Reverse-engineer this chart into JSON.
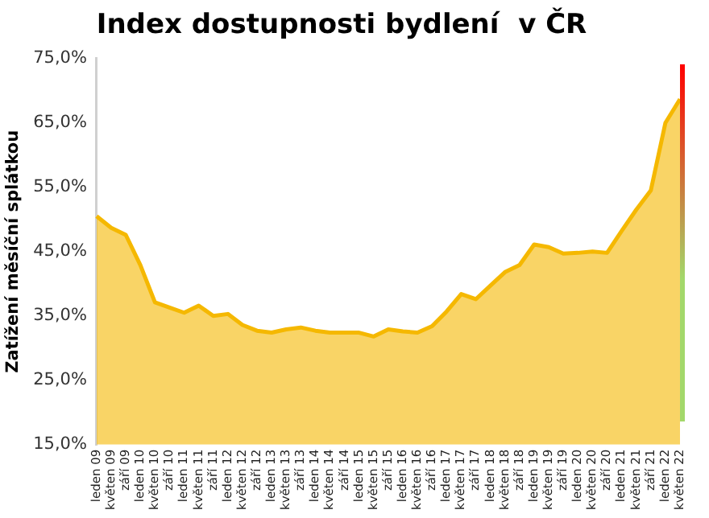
{
  "chart_data": {
    "type": "area",
    "title": "Index dostupnosti bydlení  v ČR",
    "ylabel": "Zatížení měsíční splátkou",
    "categories": [
      "leden 09",
      "květen 09",
      "září 09",
      "leden 10",
      "květen 10",
      "září 10",
      "leden 11",
      "květen 11",
      "září 11",
      "leden 12",
      "květen 12",
      "září 12",
      "leden 13",
      "květen 13",
      "září 13",
      "leden 14",
      "květen 14",
      "září 14",
      "leden 15",
      "květen 15",
      "září 15",
      "leden 16",
      "květen 16",
      "září 16",
      "leden 17",
      "květen 17",
      "září 17",
      "leden 18",
      "květen 18",
      "září 18",
      "leden 19",
      "květen 19",
      "září 19",
      "leden 20",
      "květen 20",
      "září 20",
      "leden 21",
      "květen 21",
      "září 21",
      "leden 22",
      "květen 22"
    ],
    "series": [
      {
        "color": "#f5b800",
        "values": [
          50.5,
          48.7,
          47.6,
          42.9,
          37.1,
          36.3,
          35.5,
          36.6,
          35,
          35.3,
          33.6,
          32.7,
          32.4,
          32.9,
          33.2,
          32.7,
          32.4,
          32.4,
          32.4,
          31.8,
          32.9,
          32.6,
          32.4,
          33.4,
          35.7,
          38.4,
          37.6,
          39.7,
          41.8,
          42.9,
          46.1,
          45.7,
          44.7,
          44.8,
          45,
          44.8,
          48.2,
          51.5,
          54.5,
          65,
          68.7
        ]
      }
    ],
    "ylim": [
      15,
      75
    ],
    "yticks": [
      {
        "value": 15,
        "label": "15,0%"
      },
      {
        "value": 25,
        "label": "25,0%"
      },
      {
        "value": 35,
        "label": "35,0%"
      },
      {
        "value": 45,
        "label": "45,0%"
      },
      {
        "value": 55,
        "label": "55,0%"
      },
      {
        "value": 65,
        "label": "65,0%"
      },
      {
        "value": 75,
        "label": "75,0%"
      }
    ],
    "grid": false,
    "legend": false,
    "marker": "none"
  }
}
